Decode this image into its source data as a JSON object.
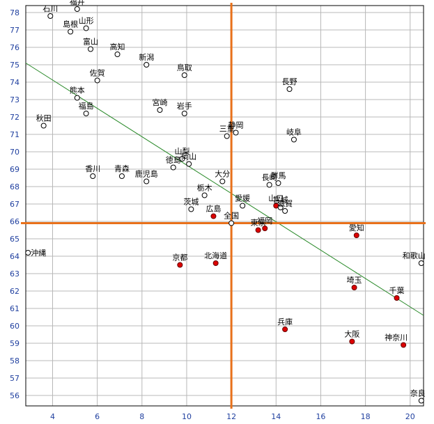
{
  "chart_data": {
    "type": "scatter",
    "title": "",
    "xlabel": "",
    "ylabel": "",
    "xlim": [
      2.8,
      20.6
    ],
    "ylim": [
      55.4,
      78.4
    ],
    "x_ticks": [
      "4",
      "6",
      "8",
      "10",
      "12",
      "14",
      "16",
      "18",
      "20"
    ],
    "x_tick_values": [
      4,
      6,
      8,
      10,
      12,
      14,
      16,
      18,
      20
    ],
    "y_ticks": [
      "56",
      "57",
      "58",
      "59",
      "60",
      "61",
      "62",
      "63",
      "64",
      "65",
      "66",
      "67",
      "68",
      "69",
      "70",
      "71",
      "72",
      "73",
      "74",
      "75",
      "76",
      "77",
      "78"
    ],
    "y_tick_values": [
      56,
      57,
      58,
      59,
      60,
      61,
      62,
      63,
      64,
      65,
      66,
      67,
      68,
      69,
      70,
      71,
      72,
      73,
      74,
      75,
      76,
      77,
      78
    ],
    "grid": true,
    "reference_lines": {
      "x": 12.0,
      "y": 65.9,
      "color": "#e8701a"
    },
    "trendline": {
      "from": [
        2.8,
        75.1
      ],
      "to": [
        20.6,
        60.6
      ],
      "color": "#2a8a2a"
    },
    "colors": {
      "highlight": "#dd0000",
      "hollow": "#ffffff",
      "grid": "#b8b8b8",
      "axis_text": "#1f3f9f"
    },
    "points": [
      {
        "label": "石川",
        "x": 3.9,
        "y": 77.8,
        "filled": false
      },
      {
        "label": "福井",
        "x": 5.1,
        "y": 78.2,
        "filled": false
      },
      {
        "label": "島根",
        "x": 4.8,
        "y": 76.9,
        "filled": false
      },
      {
        "label": "山形",
        "x": 5.5,
        "y": 77.1,
        "filled": false
      },
      {
        "label": "富山",
        "x": 5.7,
        "y": 75.9,
        "filled": false
      },
      {
        "label": "高知",
        "x": 6.9,
        "y": 75.6,
        "filled": false
      },
      {
        "label": "新潟",
        "x": 8.2,
        "y": 75.0,
        "filled": false
      },
      {
        "label": "佐賀",
        "x": 6.0,
        "y": 74.1,
        "filled": false
      },
      {
        "label": "鳥取",
        "x": 9.9,
        "y": 74.4,
        "filled": false
      },
      {
        "label": "長野",
        "x": 14.6,
        "y": 73.6,
        "filled": false
      },
      {
        "label": "熊本",
        "x": 5.1,
        "y": 73.1,
        "filled": false
      },
      {
        "label": "福島",
        "x": 5.5,
        "y": 72.2,
        "filled": false
      },
      {
        "label": "宮崎",
        "x": 8.8,
        "y": 72.4,
        "filled": false
      },
      {
        "label": "岩手",
        "x": 9.9,
        "y": 72.2,
        "filled": false
      },
      {
        "label": "秋田",
        "x": 3.6,
        "y": 71.5,
        "filled": false
      },
      {
        "label": "三重",
        "x": 11.8,
        "y": 70.9,
        "filled": false
      },
      {
        "label": "静岡",
        "x": 12.2,
        "y": 71.1,
        "filled": false
      },
      {
        "label": "岐阜",
        "x": 14.8,
        "y": 70.7,
        "filled": false
      },
      {
        "label": "山梨",
        "x": 9.8,
        "y": 69.6,
        "filled": false
      },
      {
        "label": "徳島",
        "x": 9.4,
        "y": 69.1,
        "filled": false
      },
      {
        "label": "岡山",
        "x": 10.1,
        "y": 69.3,
        "filled": false
      },
      {
        "label": "香川",
        "x": 5.8,
        "y": 68.6,
        "filled": false
      },
      {
        "label": "青森",
        "x": 7.1,
        "y": 68.6,
        "filled": false
      },
      {
        "label": "鹿児島",
        "x": 8.2,
        "y": 68.3,
        "filled": false
      },
      {
        "label": "大分",
        "x": 11.6,
        "y": 68.3,
        "filled": false
      },
      {
        "label": "長崎",
        "x": 13.7,
        "y": 68.1,
        "filled": false
      },
      {
        "label": "群馬",
        "x": 14.1,
        "y": 68.2,
        "filled": false
      },
      {
        "label": "栃木",
        "x": 10.8,
        "y": 67.5,
        "filled": false
      },
      {
        "label": "茨城",
        "x": 10.2,
        "y": 66.7,
        "filled": false
      },
      {
        "label": "広島",
        "x": 11.2,
        "y": 66.3,
        "filled": true
      },
      {
        "label": "愛媛",
        "x": 12.5,
        "y": 66.9,
        "filled": false
      },
      {
        "label": "山口",
        "x": 14.0,
        "y": 66.9,
        "filled": true
      },
      {
        "label": "宮城",
        "x": 14.2,
        "y": 66.8,
        "filled": false
      },
      {
        "label": "滋賀",
        "x": 14.4,
        "y": 66.6,
        "filled": false
      },
      {
        "label": "全国",
        "x": 12.0,
        "y": 65.9,
        "filled": false
      },
      {
        "label": "東京",
        "x": 13.2,
        "y": 65.5,
        "filled": true
      },
      {
        "label": "福岡",
        "x": 13.5,
        "y": 65.6,
        "filled": true
      },
      {
        "label": "愛知",
        "x": 17.6,
        "y": 65.2,
        "filled": true
      },
      {
        "label": "沖縄",
        "x": 2.9,
        "y": 64.2,
        "filled": false
      },
      {
        "label": "京都",
        "x": 9.7,
        "y": 63.5,
        "filled": true
      },
      {
        "label": "北海道",
        "x": 11.3,
        "y": 63.6,
        "filled": true
      },
      {
        "label": "和歌山",
        "x": 20.5,
        "y": 63.6,
        "filled": false
      },
      {
        "label": "埼玉",
        "x": 17.5,
        "y": 62.2,
        "filled": true
      },
      {
        "label": "千葉",
        "x": 19.4,
        "y": 61.6,
        "filled": true
      },
      {
        "label": "兵庫",
        "x": 14.4,
        "y": 59.8,
        "filled": true
      },
      {
        "label": "大阪",
        "x": 17.4,
        "y": 59.1,
        "filled": true
      },
      {
        "label": "神奈川",
        "x": 19.7,
        "y": 58.9,
        "filled": true
      },
      {
        "label": "奈良",
        "x": 20.5,
        "y": 55.7,
        "filled": false
      }
    ]
  }
}
